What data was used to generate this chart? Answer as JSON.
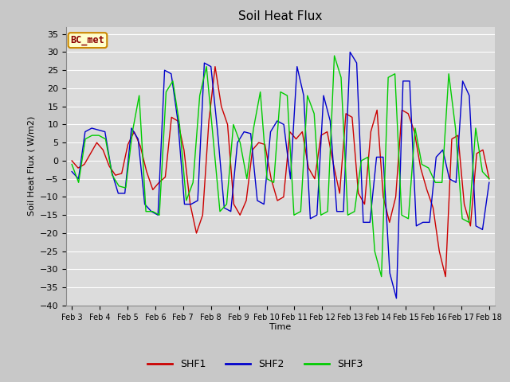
{
  "title": "Soil Heat Flux",
  "xlabel": "Time",
  "ylabel": "Soil Heat Flux (W/m2)",
  "ylim": [
    -40,
    37
  ],
  "yticks": [
    -40,
    -35,
    -30,
    -25,
    -20,
    -15,
    -10,
    -5,
    0,
    5,
    10,
    15,
    20,
    25,
    30,
    35
  ],
  "xtick_labels": [
    "Feb 3",
    "Feb 4",
    "Feb 5",
    "Feb 6",
    "Feb 7",
    "Feb 8",
    "Feb 9",
    "Feb 10",
    "Feb 11",
    "Feb 12",
    "Feb 13",
    "Feb 14",
    "Feb 15",
    "Feb 16",
    "Feb 17",
    "Feb 18"
  ],
  "fig_bg": "#c8c8c8",
  "plot_bg": "#dcdcdc",
  "grid_color": "#ffffff",
  "line_colors": [
    "#cc0000",
    "#0000cc",
    "#00cc00"
  ],
  "legend_labels": [
    "SHF1",
    "SHF2",
    "SHF3"
  ],
  "annotation_text": "BC_met",
  "annotation_bg": "#ffffcc",
  "annotation_border": "#cc8800",
  "shf1": [
    0.0,
    -2.0,
    -1.0,
    2.0,
    5.0,
    3.0,
    -1.5,
    -4.0,
    -3.5,
    4.5,
    8.0,
    4.0,
    -3.0,
    -8.0,
    -6.0,
    -4.5,
    12.0,
    11.0,
    3.0,
    -12.0,
    -20.0,
    -15.0,
    11.0,
    26.0,
    15.0,
    10.0,
    -12.0,
    -15.0,
    -11.0,
    3.0,
    5.0,
    4.5,
    -5.0,
    -11.0,
    -10.0,
    8.0,
    6.0,
    8.0,
    -2.0,
    -5.0,
    7.0,
    8.0,
    -1.0,
    -9.0,
    13.0,
    12.0,
    -9.0,
    -12.0,
    8.0,
    14.0,
    -10.0,
    -17.0,
    -10.0,
    14.0,
    13.0,
    8.0,
    -2.0,
    -8.0,
    -13.0,
    -25.0,
    -32.0,
    6.0,
    7.0,
    -12.0,
    -18.0,
    2.0,
    3.0,
    -5.0
  ],
  "shf2": [
    -3.0,
    -5.0,
    8.0,
    9.0,
    8.5,
    8.0,
    -3.0,
    -9.0,
    -9.0,
    9.0,
    6.0,
    -12.0,
    -14.0,
    -15.0,
    25.0,
    24.0,
    11.0,
    -12.0,
    -12.0,
    -11.0,
    27.0,
    26.0,
    8.0,
    -13.0,
    -14.0,
    5.0,
    8.0,
    7.5,
    -11.0,
    -12.0,
    8.0,
    11.0,
    10.0,
    -5.0,
    26.0,
    18.0,
    -16.0,
    -15.0,
    18.0,
    11.0,
    -14.0,
    -14.0,
    30.0,
    27.0,
    -17.0,
    -17.0,
    1.0,
    1.0,
    -31.0,
    -38.0,
    22.0,
    22.0,
    -18.0,
    -17.0,
    -17.0,
    1.0,
    3.0,
    -5.0,
    -6.0,
    22.0,
    18.0,
    -18.0,
    -19.0,
    -6.0
  ],
  "shf3": [
    -1.0,
    -6.0,
    6.0,
    7.0,
    7.0,
    6.0,
    -4.0,
    -7.0,
    -7.5,
    8.0,
    18.0,
    -14.0,
    -14.0,
    -15.0,
    19.0,
    22.0,
    10.0,
    -11.0,
    -6.0,
    18.0,
    26.0,
    6.0,
    -14.0,
    -12.0,
    10.0,
    5.0,
    -5.0,
    9.0,
    19.0,
    -5.0,
    -6.0,
    19.0,
    18.0,
    -15.0,
    -14.0,
    18.0,
    13.0,
    -15.0,
    -14.0,
    29.0,
    23.0,
    -15.0,
    -14.0,
    0.0,
    1.0,
    -25.0,
    -32.0,
    23.0,
    24.0,
    -15.0,
    -16.0,
    9.0,
    -1.0,
    -2.0,
    -6.0,
    -6.0,
    24.0,
    9.0,
    -16.0,
    -17.0,
    9.0,
    -3.0,
    -5.0
  ]
}
